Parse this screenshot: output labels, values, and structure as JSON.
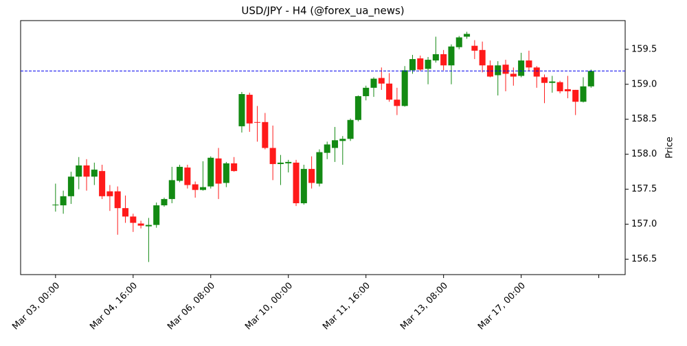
{
  "chart_data": {
    "type": "candlestick",
    "title": "USD/JPY - H4 (@forex_ua_news)",
    "y_label": "Price",
    "up_color": "#138a13",
    "down_color": "#ff1a1a",
    "hline": {
      "value": 159.19,
      "color": "#0000ee"
    },
    "xlim": [
      -4.5,
      73.4
    ],
    "xticks": [
      {
        "value": 0,
        "label": "Mar 03, 00:00"
      },
      {
        "value": 10,
        "label": "Mar 04, 16:00"
      },
      {
        "value": 20,
        "label": "Mar 06, 08:00"
      },
      {
        "value": 30,
        "label": "Mar 10, 00:00"
      },
      {
        "value": 40,
        "label": "Mar 11, 16:00"
      },
      {
        "value": 50,
        "label": "Mar 13, 08:00"
      },
      {
        "value": 60,
        "label": "Mar 17, 00:00"
      },
      {
        "value": 70,
        "label": null
      }
    ],
    "ylim": [
      156.28,
      159.91
    ],
    "yticks": [
      156.5,
      {
        "value": 157,
        "label": "157.0"
      },
      157.5,
      {
        "value": 158,
        "label": "158.0"
      },
      158.5,
      {
        "value": 159,
        "label": "159.0"
      },
      159.5
    ],
    "open": [
      157.27,
      157.27,
      157.4,
      157.68,
      157.84,
      157.68,
      157.76,
      157.47,
      157.47,
      157.23,
      157.11,
      157.01,
      156.97,
      156.99,
      157.27,
      157.36,
      157.62,
      157.81,
      157.57,
      157.49,
      157.54,
      157.94,
      157.59,
      157.87,
      158.4,
      158.85,
      158.46,
      158.46,
      158.09,
      157.86,
      157.87,
      157.88,
      157.3,
      157.79,
      157.58,
      158.02,
      158.09,
      158.19,
      158.22,
      158.49,
      158.83,
      158.95,
      159.09,
      159.01,
      158.78,
      158.69,
      159.2,
      159.37,
      159.22,
      159.34,
      159.43,
      159.27,
      159.53,
      159.68,
      159.55,
      159.49,
      159.27,
      159.13,
      159.28,
      159.15,
      159.12,
      159.34,
      159.24,
      159.1,
      159.02,
      159.03,
      158.93,
      158.92,
      158.75,
      158.97
    ],
    "high": [
      157.58,
      157.48,
      157.75,
      157.96,
      157.93,
      157.88,
      157.85,
      157.56,
      157.54,
      157.41,
      157.15,
      157.05,
      157.09,
      157.31,
      157.38,
      157.82,
      157.85,
      157.85,
      157.61,
      157.9,
      157.97,
      158.09,
      157.89,
      157.96,
      158.89,
      158.88,
      158.69,
      158.59,
      158.41,
      157.99,
      157.92,
      157.92,
      157.85,
      157.97,
      158.07,
      158.18,
      158.39,
      158.26,
      158.51,
      158.84,
      158.98,
      159.1,
      159.24,
      159.16,
      158.95,
      159.26,
      159.42,
      159.41,
      159.39,
      159.68,
      159.49,
      159.57,
      159.69,
      159.75,
      159.63,
      159.61,
      159.34,
      159.33,
      159.35,
      159.24,
      159.45,
      159.48,
      159.26,
      159.14,
      159.12,
      159.05,
      159.12,
      158.92,
      159.1,
      159.21
    ],
    "low": [
      157.18,
      157.15,
      157.29,
      157.5,
      157.48,
      157.56,
      157.36,
      157.19,
      156.85,
      157.02,
      156.89,
      156.94,
      156.46,
      156.95,
      157.25,
      157.3,
      157.6,
      157.51,
      157.38,
      157.48,
      157.51,
      157.36,
      157.53,
      157.75,
      158.31,
      158.32,
      158.18,
      158.07,
      157.63,
      157.56,
      157.74,
      157.26,
      157.28,
      157.51,
      157.54,
      157.93,
      157.89,
      157.85,
      158.19,
      158.47,
      158.77,
      158.82,
      158.92,
      158.75,
      158.56,
      158.68,
      159.15,
      159.19,
      159.0,
      159.31,
      159.2,
      159.0,
      159.5,
      159.65,
      159.36,
      159.17,
      159.1,
      158.84,
      158.9,
      158.98,
      159.1,
      159.19,
      158.95,
      158.73,
      158.88,
      158.87,
      158.8,
      158.56,
      158.74,
      158.95
    ],
    "close": [
      157.28,
      157.4,
      157.68,
      157.84,
      157.68,
      157.78,
      157.4,
      157.4,
      157.23,
      157.11,
      157.02,
      156.98,
      156.99,
      157.27,
      157.36,
      157.63,
      157.82,
      157.56,
      157.49,
      157.53,
      157.95,
      157.58,
      157.87,
      157.76,
      158.86,
      158.44,
      158.45,
      158.09,
      157.86,
      157.88,
      157.89,
      157.3,
      157.79,
      157.59,
      158.03,
      158.14,
      158.2,
      158.22,
      158.49,
      158.83,
      158.95,
      159.08,
      159.01,
      158.78,
      158.69,
      159.2,
      159.36,
      159.21,
      159.35,
      159.43,
      159.27,
      159.54,
      159.67,
      159.72,
      159.48,
      159.27,
      159.11,
      159.27,
      159.15,
      159.11,
      159.34,
      159.24,
      159.11,
      159.02,
      159.04,
      158.9,
      158.9,
      158.75,
      158.97,
      159.19
    ]
  }
}
